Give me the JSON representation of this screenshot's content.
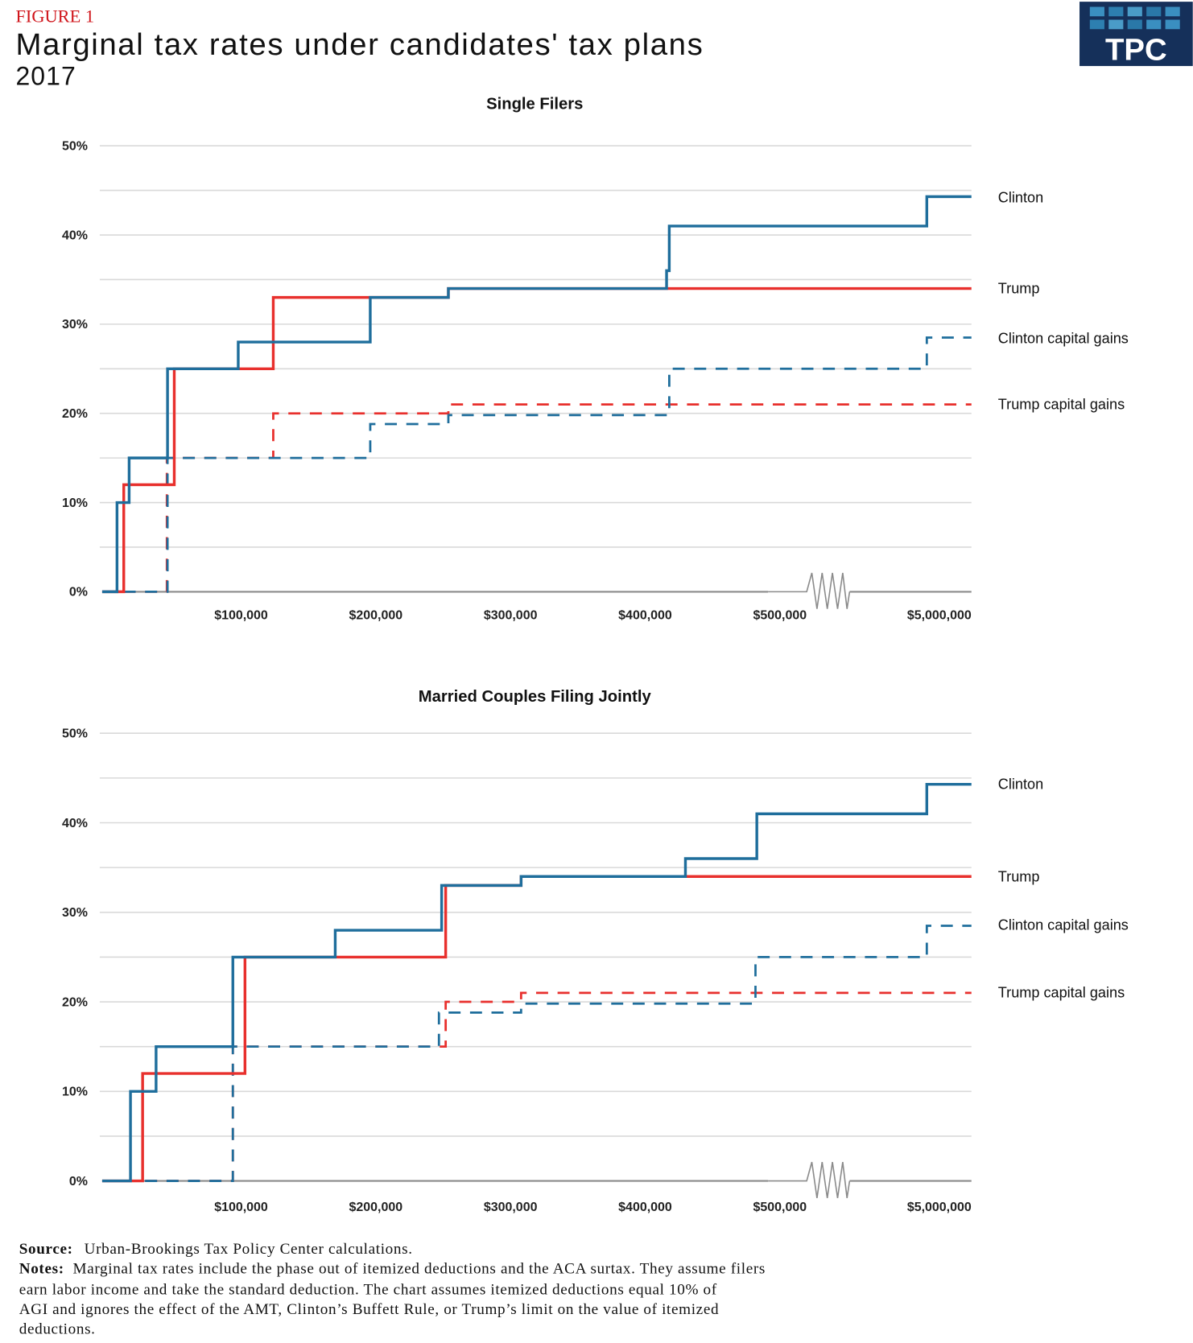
{
  "header": {
    "figure_label": "FIGURE 1",
    "title": "Marginal tax rates under candidates' tax plans",
    "subtitle": "2017",
    "logo_text": "TPC"
  },
  "colors": {
    "clinton": "#1f6e9c",
    "trump": "#e8302d",
    "figure_label": "#d0141a",
    "logo_bg": "#15305a",
    "grid": "#d9d9d9",
    "axis": "#8a8a8a"
  },
  "chart_data": [
    {
      "type": "line",
      "step": true,
      "title": "Single Filers",
      "xlabel": "",
      "ylabel": "",
      "x_tick_labels": [
        "$100,000",
        "$200,000",
        "$300,000",
        "$400,000",
        "$500,000",
        "$5,000,000"
      ],
      "x_ticks": [
        100000,
        200000,
        300000,
        400000,
        500000,
        5000000
      ],
      "x_axis_break": "between $500,000 and $5,000,000",
      "y_tick_labels": [
        "0%",
        "10%",
        "20%",
        "30%",
        "40%",
        "50%"
      ],
      "ylim": [
        0,
        50
      ],
      "grid": true,
      "legend": "right, labels at line ends",
      "series": [
        {
          "name": "Clinton",
          "style": "solid",
          "color": "#1f6e9c",
          "steps": [
            [
              5000,
              0
            ],
            [
              16000,
              10
            ],
            [
              25000,
              15
            ],
            [
              53500,
              25
            ],
            [
              106000,
              28
            ],
            [
              204000,
              33
            ],
            [
              262000,
              34
            ],
            [
              424000,
              36
            ],
            [
              426000,
              41
            ],
            [
              5000000,
              44.3
            ]
          ]
        },
        {
          "name": "Trump",
          "style": "solid",
          "color": "#e8302d",
          "steps": [
            [
              5000,
              0
            ],
            [
              21000,
              12
            ],
            [
              58500,
              25
            ],
            [
              132000,
              33
            ],
            [
              262000,
              34
            ]
          ]
        },
        {
          "name": "Clinton capital gains",
          "style": "dashed",
          "color": "#1f6e9c",
          "steps": [
            [
              5000,
              0
            ],
            [
              53500,
              15
            ],
            [
              204000,
              18.8
            ],
            [
              262000,
              19.8
            ],
            [
              426000,
              25
            ],
            [
              5000000,
              28.5
            ]
          ]
        },
        {
          "name": "Trump capital gains",
          "style": "dashed",
          "color": "#e8302d",
          "steps": [
            [
              5000,
              0
            ],
            [
              53000,
              15
            ],
            [
              132000,
              20
            ],
            [
              262000,
              21
            ]
          ]
        }
      ]
    },
    {
      "type": "line",
      "step": true,
      "title": "Married Couples Filing Jointly",
      "xlabel": "",
      "ylabel": "",
      "x_tick_labels": [
        "$100,000",
        "$200,000",
        "$300,000",
        "$400,000",
        "$500,000",
        "$5,000,000"
      ],
      "x_ticks": [
        100000,
        200000,
        300000,
        400000,
        500000,
        5000000
      ],
      "x_axis_break": "between $500,000 and $5,000,000",
      "y_tick_labels": [
        "0%",
        "10%",
        "20%",
        "30%",
        "40%",
        "50%"
      ],
      "ylim": [
        0,
        50
      ],
      "grid": true,
      "legend": "right, labels at line ends",
      "series": [
        {
          "name": "Clinton",
          "style": "solid",
          "color": "#1f6e9c",
          "steps": [
            [
              5000,
              0
            ],
            [
              26000,
              10
            ],
            [
              45000,
              15
            ],
            [
              102000,
              25
            ],
            [
              178000,
              28
            ],
            [
              257000,
              33
            ],
            [
              316000,
              34
            ],
            [
              438000,
              36
            ],
            [
              491000,
              41
            ],
            [
              5000000,
              44.3
            ]
          ]
        },
        {
          "name": "Trump",
          "style": "solid",
          "color": "#e8302d",
          "steps": [
            [
              5000,
              0
            ],
            [
              35000,
              12
            ],
            [
              111000,
              25
            ],
            [
              260000,
              33
            ],
            [
              316000,
              34
            ]
          ]
        },
        {
          "name": "Clinton capital gains",
          "style": "dashed",
          "color": "#1f6e9c",
          "steps": [
            [
              5000,
              0
            ],
            [
              102000,
              15
            ],
            [
              255000,
              18.8
            ],
            [
              316000,
              19.8
            ],
            [
              490000,
              25
            ],
            [
              5000000,
              28.5
            ]
          ]
        },
        {
          "name": "Trump capital gains",
          "style": "dashed",
          "color": "#e8302d",
          "steps": [
            [
              5000,
              0
            ],
            [
              102000,
              15
            ],
            [
              260000,
              20
            ],
            [
              316000,
              21
            ]
          ]
        }
      ]
    }
  ],
  "footer": {
    "source_label": "Source:",
    "source_text": "Urban-Brookings Tax Policy Center calculations.",
    "notes_label": "Notes:",
    "notes_lines": [
      "Marginal tax rates include the phase out of itemized deductions and the ACA surtax. They assume filers",
      "earn labor income and take the standard deduction. The chart assumes itemized deductions equal 10% of",
      "AGI and ignores the effect of the AMT, Clinton’s Buffett Rule, or Trump’s limit on the value of itemized",
      "deductions."
    ]
  }
}
